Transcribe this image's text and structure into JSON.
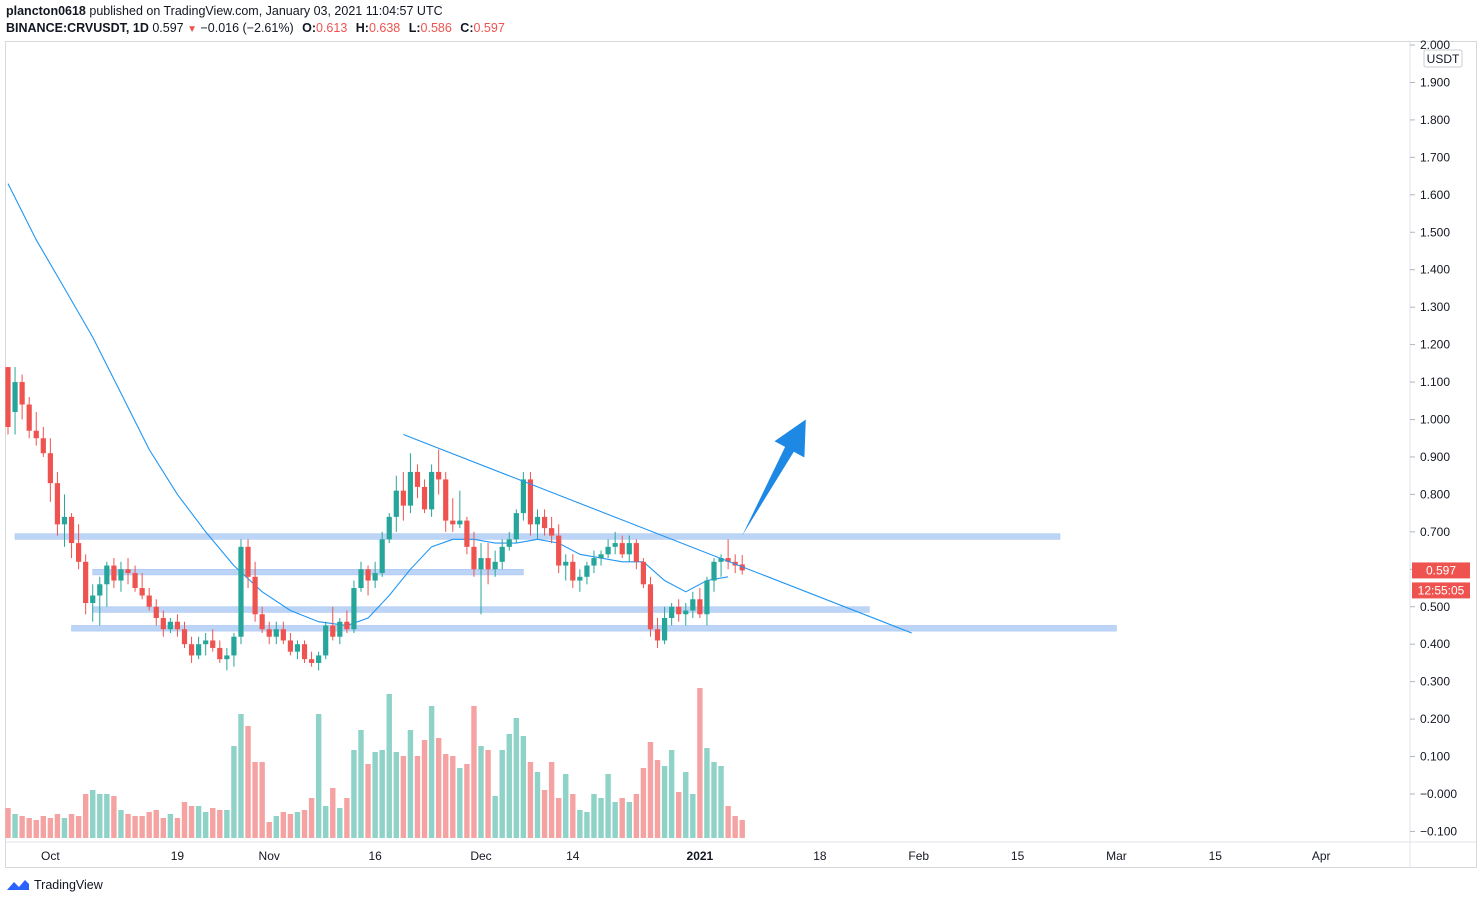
{
  "header": {
    "author": "plancton0618",
    "published_text": "published on TradingView.com, January 03, 2021 11:04:57 UTC",
    "symbol": "BINANCE:CRVUSDT, 1D",
    "last": "0.597",
    "change": "−0.016 (−2.61%)",
    "o_label": "O:",
    "o_value": "0.613",
    "h_label": "H:",
    "h_value": "0.638",
    "l_label": "L:",
    "l_value": "0.586",
    "c_label": "C:",
    "c_value": "0.597"
  },
  "price_axis": {
    "currency": "USDT",
    "ticks": [
      "2.000",
      "1.900",
      "1.800",
      "1.700",
      "1.600",
      "1.500",
      "1.400",
      "1.300",
      "1.200",
      "1.100",
      "1.000",
      "0.900",
      "0.800",
      "0.700",
      "0.600",
      "0.500",
      "0.400",
      "0.300",
      "0.200",
      "0.100",
      "−0.000",
      "−0.100"
    ],
    "last_price_label": "0.597",
    "countdown_label": "12:55:05"
  },
  "time_axis": {
    "ticks": [
      "Oct",
      "19",
      "Nov",
      "16",
      "Dec",
      "14",
      "2021",
      "18",
      "Feb",
      "15",
      "Mar",
      "15",
      "Apr"
    ]
  },
  "footer": {
    "brand": "TradingView"
  },
  "colors": {
    "up": "#26a69a",
    "down": "#ef5350",
    "vol_up": "#8fd2c8",
    "vol_down": "#f5a3a2",
    "ma": "#2196f3",
    "zone": "#bcd4f6",
    "arrow": "#1e88e5"
  },
  "chart_data": {
    "type": "candlestick",
    "title": "BINANCE:CRVUSDT, 1D",
    "ylabel": "USDT",
    "ylim": [
      -0.1,
      2.0
    ],
    "first_bar_day": 0,
    "day_ticks": [
      [
        "Oct",
        6
      ],
      [
        "19",
        24
      ],
      [
        "Nov",
        37
      ],
      [
        "16",
        52
      ],
      [
        "Dec",
        67
      ],
      [
        "14",
        80
      ],
      [
        "2021",
        98
      ],
      [
        "18",
        115
      ],
      [
        "Feb",
        129
      ],
      [
        "15",
        143
      ],
      [
        "Mar",
        157
      ],
      [
        "15",
        171
      ],
      [
        "Apr",
        186
      ]
    ],
    "ohlc": [
      [
        1.14,
        1.14,
        0.96,
        0.98
      ],
      [
        1.02,
        1.14,
        0.96,
        1.1
      ],
      [
        1.1,
        1.12,
        1.0,
        1.04
      ],
      [
        1.04,
        1.06,
        0.95,
        0.97
      ],
      [
        0.97,
        1.02,
        0.93,
        0.95
      ],
      [
        0.95,
        0.98,
        0.9,
        0.91
      ],
      [
        0.91,
        0.95,
        0.78,
        0.83
      ],
      [
        0.83,
        0.86,
        0.69,
        0.72
      ],
      [
        0.72,
        0.8,
        0.66,
        0.74
      ],
      [
        0.74,
        0.75,
        0.63,
        0.67
      ],
      [
        0.67,
        0.72,
        0.6,
        0.62
      ],
      [
        0.62,
        0.64,
        0.48,
        0.51
      ],
      [
        0.51,
        0.56,
        0.46,
        0.53
      ],
      [
        0.53,
        0.58,
        0.45,
        0.56
      ],
      [
        0.56,
        0.62,
        0.5,
        0.61
      ],
      [
        0.61,
        0.63,
        0.55,
        0.57
      ],
      [
        0.57,
        0.62,
        0.54,
        0.6
      ],
      [
        0.6,
        0.63,
        0.56,
        0.59
      ],
      [
        0.59,
        0.61,
        0.54,
        0.55
      ],
      [
        0.55,
        0.59,
        0.52,
        0.53
      ],
      [
        0.53,
        0.55,
        0.49,
        0.5
      ],
      [
        0.5,
        0.52,
        0.45,
        0.47
      ],
      [
        0.47,
        0.49,
        0.42,
        0.44
      ],
      [
        0.44,
        0.47,
        0.43,
        0.46
      ],
      [
        0.46,
        0.48,
        0.42,
        0.44
      ],
      [
        0.44,
        0.46,
        0.39,
        0.4
      ],
      [
        0.4,
        0.42,
        0.35,
        0.37
      ],
      [
        0.37,
        0.42,
        0.36,
        0.4
      ],
      [
        0.4,
        0.43,
        0.37,
        0.41
      ],
      [
        0.41,
        0.44,
        0.38,
        0.39
      ],
      [
        0.39,
        0.41,
        0.35,
        0.36
      ],
      [
        0.36,
        0.39,
        0.33,
        0.37
      ],
      [
        0.37,
        0.43,
        0.34,
        0.42
      ],
      [
        0.42,
        0.68,
        0.4,
        0.66
      ],
      [
        0.66,
        0.68,
        0.55,
        0.58
      ],
      [
        0.58,
        0.62,
        0.46,
        0.48
      ],
      [
        0.48,
        0.5,
        0.43,
        0.44
      ],
      [
        0.44,
        0.46,
        0.4,
        0.42
      ],
      [
        0.42,
        0.46,
        0.4,
        0.44
      ],
      [
        0.44,
        0.46,
        0.4,
        0.41
      ],
      [
        0.41,
        0.43,
        0.37,
        0.38
      ],
      [
        0.38,
        0.41,
        0.36,
        0.4
      ],
      [
        0.4,
        0.41,
        0.35,
        0.36
      ],
      [
        0.36,
        0.38,
        0.34,
        0.35
      ],
      [
        0.35,
        0.38,
        0.33,
        0.37
      ],
      [
        0.37,
        0.46,
        0.36,
        0.45
      ],
      [
        0.45,
        0.5,
        0.41,
        0.42
      ],
      [
        0.42,
        0.47,
        0.4,
        0.46
      ],
      [
        0.46,
        0.49,
        0.43,
        0.44
      ],
      [
        0.44,
        0.57,
        0.43,
        0.55
      ],
      [
        0.55,
        0.62,
        0.54,
        0.6
      ],
      [
        0.6,
        0.61,
        0.53,
        0.57
      ],
      [
        0.57,
        0.62,
        0.55,
        0.59
      ],
      [
        0.59,
        0.7,
        0.58,
        0.68
      ],
      [
        0.68,
        0.75,
        0.67,
        0.74
      ],
      [
        0.74,
        0.85,
        0.7,
        0.81
      ],
      [
        0.81,
        0.86,
        0.73,
        0.77
      ],
      [
        0.77,
        0.91,
        0.75,
        0.86
      ],
      [
        0.86,
        0.88,
        0.79,
        0.82
      ],
      [
        0.82,
        0.84,
        0.75,
        0.76
      ],
      [
        0.76,
        0.88,
        0.74,
        0.86
      ],
      [
        0.86,
        0.92,
        0.8,
        0.84
      ],
      [
        0.84,
        0.86,
        0.7,
        0.73
      ],
      [
        0.73,
        0.79,
        0.7,
        0.72
      ],
      [
        0.72,
        0.81,
        0.71,
        0.73
      ],
      [
        0.73,
        0.74,
        0.64,
        0.66
      ],
      [
        0.66,
        0.7,
        0.58,
        0.6
      ],
      [
        0.6,
        0.67,
        0.48,
        0.63
      ],
      [
        0.63,
        0.67,
        0.56,
        0.6
      ],
      [
        0.6,
        0.65,
        0.58,
        0.62
      ],
      [
        0.62,
        0.68,
        0.6,
        0.66
      ],
      [
        0.66,
        0.7,
        0.65,
        0.68
      ],
      [
        0.68,
        0.76,
        0.67,
        0.75
      ],
      [
        0.75,
        0.86,
        0.73,
        0.84
      ],
      [
        0.84,
        0.86,
        0.69,
        0.72
      ],
      [
        0.72,
        0.76,
        0.68,
        0.74
      ],
      [
        0.74,
        0.76,
        0.69,
        0.71
      ],
      [
        0.71,
        0.74,
        0.67,
        0.69
      ],
      [
        0.69,
        0.72,
        0.59,
        0.61
      ],
      [
        0.61,
        0.64,
        0.57,
        0.62
      ],
      [
        0.62,
        0.64,
        0.55,
        0.57
      ],
      [
        0.57,
        0.6,
        0.54,
        0.58
      ],
      [
        0.58,
        0.62,
        0.56,
        0.61
      ],
      [
        0.61,
        0.65,
        0.59,
        0.63
      ],
      [
        0.63,
        0.65,
        0.61,
        0.64
      ],
      [
        0.64,
        0.68,
        0.63,
        0.66
      ],
      [
        0.66,
        0.7,
        0.64,
        0.67
      ],
      [
        0.67,
        0.69,
        0.63,
        0.64
      ],
      [
        0.64,
        0.69,
        0.62,
        0.67
      ],
      [
        0.67,
        0.68,
        0.6,
        0.62
      ],
      [
        0.62,
        0.63,
        0.55,
        0.56
      ],
      [
        0.56,
        0.58,
        0.42,
        0.44
      ],
      [
        0.44,
        0.47,
        0.39,
        0.41
      ],
      [
        0.41,
        0.5,
        0.4,
        0.47
      ],
      [
        0.47,
        0.51,
        0.45,
        0.5
      ],
      [
        0.5,
        0.52,
        0.46,
        0.48
      ],
      [
        0.48,
        0.51,
        0.45,
        0.49
      ],
      [
        0.49,
        0.54,
        0.47,
        0.52
      ],
      [
        0.52,
        0.55,
        0.47,
        0.48
      ],
      [
        0.48,
        0.58,
        0.45,
        0.57
      ],
      [
        0.57,
        0.63,
        0.54,
        0.62
      ],
      [
        0.62,
        0.64,
        0.58,
        0.63
      ],
      [
        0.63,
        0.68,
        0.6,
        0.62
      ],
      [
        0.62,
        0.64,
        0.59,
        0.61
      ],
      [
        0.613,
        0.638,
        0.586,
        0.597
      ]
    ],
    "volume_relative": [
      0.15,
      0.12,
      0.11,
      0.1,
      0.09,
      0.11,
      0.1,
      0.12,
      0.1,
      0.12,
      0.11,
      0.22,
      0.24,
      0.22,
      0.22,
      0.21,
      0.14,
      0.12,
      0.11,
      0.11,
      0.13,
      0.14,
      0.1,
      0.12,
      0.1,
      0.18,
      0.16,
      0.16,
      0.13,
      0.15,
      0.14,
      0.14,
      0.46,
      0.62,
      0.56,
      0.38,
      0.38,
      0.08,
      0.11,
      0.13,
      0.12,
      0.13,
      0.14,
      0.2,
      0.62,
      0.16,
      0.25,
      0.15,
      0.2,
      0.44,
      0.54,
      0.37,
      0.43,
      0.44,
      0.72,
      0.43,
      0.41,
      0.54,
      0.41,
      0.49,
      0.66,
      0.5,
      0.42,
      0.41,
      0.35,
      0.37,
      0.66,
      0.46,
      0.44,
      0.21,
      0.44,
      0.52,
      0.6,
      0.51,
      0.38,
      0.33,
      0.24,
      0.38,
      0.2,
      0.32,
      0.22,
      0.14,
      0.13,
      0.22,
      0.2,
      0.32,
      0.18,
      0.2,
      0.18,
      0.22,
      0.35,
      0.48,
      0.39,
      0.36,
      0.44,
      0.23,
      0.33,
      0.22,
      0.75,
      0.45,
      0.38,
      0.36,
      0.16,
      0.11,
      0.09
    ],
    "volume_max_label": "relative",
    "ma_line": [
      [
        0,
        1.63
      ],
      [
        4,
        1.48
      ],
      [
        8,
        1.35
      ],
      [
        12,
        1.22
      ],
      [
        16,
        1.07
      ],
      [
        20,
        0.92
      ],
      [
        24,
        0.8
      ],
      [
        28,
        0.7
      ],
      [
        32,
        0.61
      ],
      [
        36,
        0.54
      ],
      [
        40,
        0.49
      ],
      [
        44,
        0.46
      ],
      [
        48,
        0.45
      ],
      [
        51,
        0.47
      ],
      [
        54,
        0.53
      ],
      [
        57,
        0.6
      ],
      [
        60,
        0.66
      ],
      [
        63,
        0.68
      ],
      [
        66,
        0.68
      ],
      [
        69,
        0.67
      ],
      [
        72,
        0.67
      ],
      [
        75,
        0.68
      ],
      [
        78,
        0.67
      ],
      [
        81,
        0.64
      ],
      [
        84,
        0.63
      ],
      [
        87,
        0.62
      ],
      [
        90,
        0.62
      ],
      [
        93,
        0.57
      ],
      [
        96,
        0.54
      ],
      [
        99,
        0.57
      ],
      [
        102,
        0.58
      ]
    ],
    "zones": [
      {
        "day_start": 1,
        "day_end": 149,
        "low": 0.68,
        "high": 0.695
      },
      {
        "day_start": 12,
        "day_end": 73,
        "low": 0.585,
        "high": 0.6
      },
      {
        "day_start": 12,
        "day_end": 122,
        "low": 0.485,
        "high": 0.5
      },
      {
        "day_start": 9,
        "day_end": 157,
        "low": 0.435,
        "high": 0.45
      }
    ],
    "trendline": {
      "from": [
        56,
        0.96
      ],
      "to": [
        128,
        0.43
      ]
    },
    "arrow": {
      "from": [
        104,
        0.69
      ],
      "to": [
        113,
        1.0
      ]
    }
  }
}
